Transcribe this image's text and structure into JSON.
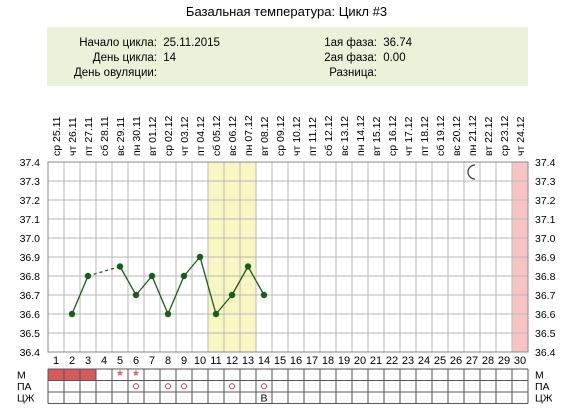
{
  "title": "Базальная температура: Цикл #3",
  "info": {
    "cycle_start_label": "Начало цикла:",
    "cycle_start_value": "25.11.2015",
    "cycle_day_label": "День цикла:",
    "cycle_day_value": "14",
    "ovulation_day_label": "День овуляции:",
    "ovulation_day_value": "",
    "phase1_label": "1ая фаза:",
    "phase1_value": "36.74",
    "phase2_label": "2ая фаза:",
    "phase2_value": "0.00",
    "difference_label": "Разница:",
    "difference_value": ""
  },
  "chart_data": {
    "type": "line",
    "dates": [
      "25.11",
      "26.11",
      "27.11",
      "28.11",
      "29.11",
      "30.11",
      "01.12",
      "02.12",
      "03.12",
      "04.12",
      "05.12",
      "06.12",
      "07.12",
      "08.12",
      "09.12",
      "10.12",
      "11.12",
      "12.12",
      "13.12",
      "14.12",
      "15.12",
      "16.12",
      "17.12",
      "18.12",
      "19.12",
      "20.12",
      "21.12",
      "22.12",
      "23.12",
      "24.12"
    ],
    "weekdays": [
      "ср",
      "чт",
      "пт",
      "сб",
      "вс",
      "пн",
      "вт",
      "ср",
      "чт",
      "пт",
      "сб",
      "вс",
      "пн",
      "вт",
      "ср",
      "чт",
      "пт",
      "сб",
      "вс",
      "пн",
      "вт",
      "ср",
      "чт",
      "пт",
      "сб",
      "вс",
      "пн",
      "вт",
      "ср",
      "чт"
    ],
    "days": [
      1,
      2,
      3,
      4,
      5,
      6,
      7,
      8,
      9,
      10,
      11,
      12,
      13,
      14,
      15,
      16,
      17,
      18,
      19,
      20,
      21,
      22,
      23,
      24,
      25,
      26,
      27,
      28,
      29,
      30
    ],
    "y_ticks": [
      "37.4",
      "37.3",
      "37.2",
      "37.1",
      "37.0",
      "36.9",
      "36.8",
      "36.7",
      "36.6",
      "36.5",
      "36.4"
    ],
    "ylim": [
      36.4,
      37.4
    ],
    "temperatures": [
      null,
      36.6,
      36.8,
      null,
      36.85,
      36.7,
      36.8,
      36.6,
      36.8,
      36.9,
      36.6,
      36.7,
      36.85,
      36.7,
      null,
      null,
      null,
      null,
      null,
      null,
      null,
      null,
      null,
      null,
      null,
      null,
      null,
      null,
      null,
      null
    ],
    "highlight_yellow_days": [
      11,
      12,
      13
    ],
    "highlight_pink_days": [
      30
    ],
    "moon_day": 27,
    "row_labels": [
      "М",
      "ПА",
      "ЦЖ"
    ],
    "menstruation_filled_days": [
      1,
      2,
      3
    ],
    "menstruation_spotting_days": [
      5,
      6
    ],
    "pa_marked_days": [
      6,
      8,
      9,
      12,
      14
    ],
    "cervical_marks": [
      {
        "day": 14,
        "text": "В"
      }
    ],
    "colors": {
      "line": "#1a5c1a",
      "point": "#1a5c1a",
      "yellow": "#f8f7c2",
      "pink": "#f7c3c3",
      "menstruation": "#d85a5a",
      "mark": "#d85a5a",
      "grid": "#b8b8b8"
    }
  }
}
